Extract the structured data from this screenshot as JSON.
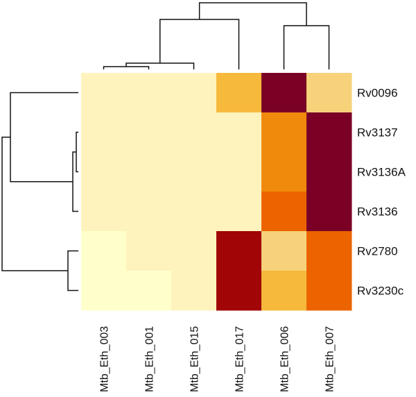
{
  "chart_data": {
    "type": "heatmap",
    "title": "",
    "columns": [
      "Mtb_Eth_003",
      "Mtb_Eth_001",
      "Mtb_Eth_015",
      "Mtb_Eth_017",
      "Mtb_Eth_006",
      "Mtb_Eth_007"
    ],
    "rows": [
      "Rv0096",
      "Rv3137",
      "Rv3136A",
      "Rv3136",
      "Rv2780",
      "Rv3230c"
    ],
    "values": [
      [
        1,
        1,
        1,
        3,
        7,
        2
      ],
      [
        1,
        1,
        1,
        1,
        4,
        7
      ],
      [
        1,
        1,
        1,
        1,
        4,
        7
      ],
      [
        1,
        1,
        1,
        1,
        5,
        7
      ],
      [
        0,
        1,
        1,
        6,
        2,
        5
      ],
      [
        0,
        0,
        1,
        6,
        3,
        5
      ]
    ],
    "color_scale": [
      "#FFFFCC",
      "#FEF3BC",
      "#F7D27B",
      "#F6B93C",
      "#F08A0C",
      "#EC6400",
      "#A10505",
      "#7A0025"
    ],
    "column_dendrogram": {
      "h": 96,
      "c": [
        {
          "h": 72,
          "c": [
            {
              "h": 9,
              "c": [
                {
                  "h": 4,
                  "c": [
                    0,
                    1
                  ]
                },
                2
              ]
            },
            3
          ]
        },
        {
          "h": 63,
          "c": [
            4,
            5
          ]
        }
      ]
    },
    "row_dendrogram": {
      "h": 110,
      "c": [
        {
          "h": 98,
          "c": [
            0,
            {
              "h": 8,
              "c": [
                {
                  "h": 3,
                  "c": [
                    1,
                    2
                  ]
                },
                3
              ]
            }
          ]
        },
        {
          "h": 15,
          "c": [
            4,
            5
          ]
        }
      ]
    }
  }
}
